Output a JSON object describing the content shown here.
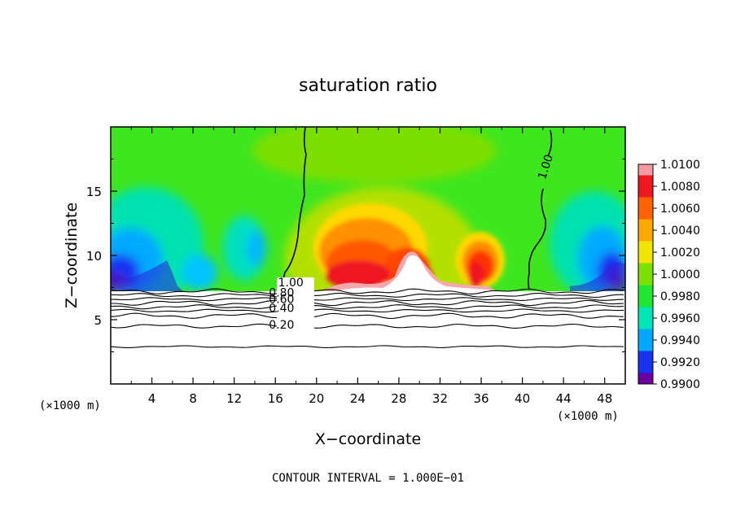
{
  "chart_data": {
    "type": "heatmap",
    "title": "saturation ratio",
    "xlabel": "X−coordinate",
    "ylabel": "Z−coordinate",
    "x_unit_label": "(×1000 m)",
    "z_unit_label": "(×1000 m)",
    "footer": "CONTOUR INTERVAL = 1.000E−01",
    "xlim": [
      0,
      50
    ],
    "ylim": [
      0,
      20
    ],
    "x_ticks": [
      4,
      8,
      12,
      16,
      20,
      24,
      28,
      32,
      36,
      40,
      44,
      48
    ],
    "x_tick_labels": [
      "4",
      "8",
      "12",
      "16",
      "20",
      "24",
      "28",
      "32",
      "36",
      "40",
      "44",
      "48"
    ],
    "y_ticks": [
      5,
      10,
      15
    ],
    "y_tick_labels": [
      "5",
      "10",
      "15"
    ],
    "colorbar": {
      "min": 0.99,
      "max": 1.01,
      "labels": [
        "1.0100",
        "1.0080",
        "1.0060",
        "1.0040",
        "1.0020",
        "1.0000",
        "0.9980",
        "0.9960",
        "0.9940",
        "0.9920",
        "0.9900"
      ],
      "colors": [
        "#f49aa2",
        "#ef1820",
        "#ff6200",
        "#ffa800",
        "#f0e600",
        "#7de100",
        "#1ee632",
        "#00e6b8",
        "#00a8ff",
        "#1832f0",
        "#6a00a0"
      ]
    },
    "contour_labels": [
      {
        "text": "1.00",
        "x": 17.5,
        "z": 7.6
      },
      {
        "text": "1.00",
        "x": 42.6,
        "z": 16.8
      },
      {
        "text": "0.80",
        "x": 16.6,
        "z": 6.8
      },
      {
        "text": "0.60",
        "x": 16.6,
        "z": 6.3
      },
      {
        "text": "0.40",
        "x": 16.6,
        "z": 5.6
      },
      {
        "text": "0.20",
        "x": 16.6,
        "z": 4.3
      }
    ],
    "lower_contour_levels_z": [
      2.9,
      4.5,
      5.3,
      5.7,
      6.0,
      6.3,
      6.6,
      6.9,
      7.2
    ],
    "grid": false
  }
}
